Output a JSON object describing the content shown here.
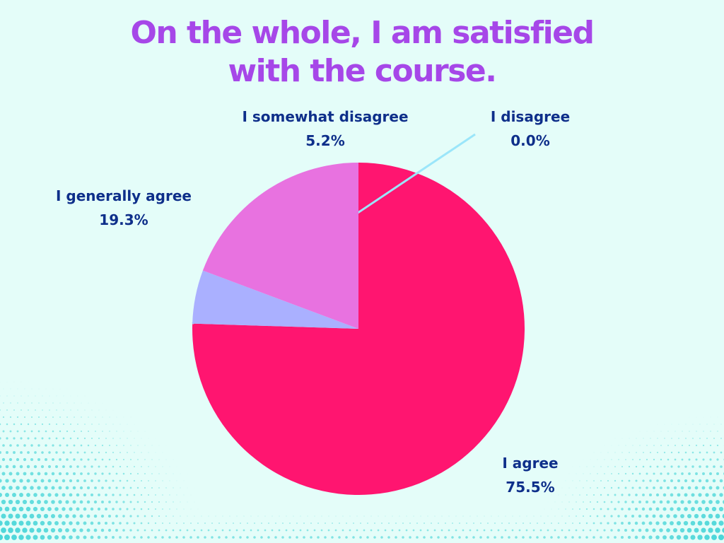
{
  "chart_data": {
    "type": "pie",
    "title_lines": [
      "On the whole, I am satisfied",
      "with the course."
    ],
    "categories": [
      "I agree",
      "I disagree",
      "I somewhat disagree",
      "I generally agree"
    ],
    "values": [
      75.5,
      0.0,
      5.2,
      19.3
    ],
    "value_labels": [
      "75.5%",
      "0.0%",
      "5.2%",
      "19.3%"
    ],
    "colors": [
      "#ff1570",
      "#9be6fa",
      "#aab0ff",
      "#e872e0"
    ]
  },
  "colors": {
    "background": "#e4fdf9",
    "title": "#a647e8",
    "label": "#0e2f8a",
    "dots": "#3fd3d6"
  }
}
